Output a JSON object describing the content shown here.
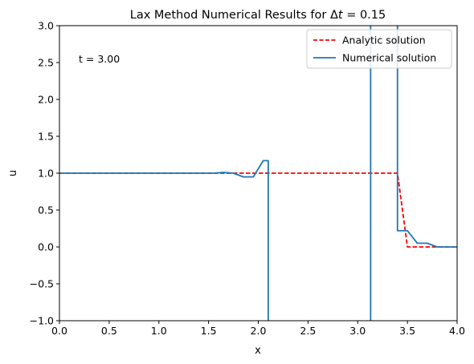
{
  "chart_data": {
    "type": "line",
    "title_prefix": "Lax Method Numerical Results for ",
    "title_delta": "Δ",
    "title_t": "t",
    "title_suffix": " = 0.15",
    "xlabel": "x",
    "ylabel": "u",
    "xlim": [
      0.0,
      4.0
    ],
    "ylim": [
      -1.0,
      3.0
    ],
    "xticks": [
      0.0,
      0.5,
      1.0,
      1.5,
      2.0,
      2.5,
      3.0,
      3.5,
      4.0
    ],
    "xtick_labels": [
      "0.0",
      "0.5",
      "1.0",
      "1.5",
      "2.0",
      "2.5",
      "3.0",
      "3.5",
      "4.0"
    ],
    "yticks": [
      -1.0,
      -0.5,
      0.0,
      0.5,
      1.0,
      1.5,
      2.0,
      2.5,
      3.0
    ],
    "ytick_labels": [
      "−1.0",
      "−0.5",
      "0.0",
      "0.5",
      "1.0",
      "1.5",
      "2.0",
      "2.5",
      "3.0"
    ],
    "grid": false,
    "legend_position": "top-right",
    "annotation": "t = 3.00",
    "series": [
      {
        "name": "Analytic solution",
        "color": "#ff0000",
        "style": "dashed",
        "x": [
          0.0,
          3.4,
          3.5,
          4.0
        ],
        "y": [
          1.0,
          1.0,
          0.0,
          0.0
        ]
      },
      {
        "name": "Numerical solution",
        "color": "#1f77b4",
        "style": "solid",
        "step": true,
        "x": [
          0.0,
          1.55,
          1.65,
          1.75,
          1.85,
          1.95,
          2.05,
          2.1,
          2.1,
          3.13,
          3.13,
          3.4,
          3.4,
          3.5,
          3.6,
          3.7,
          3.8,
          4.0
        ],
        "y": [
          1.0,
          1.0,
          1.01,
          1.0,
          0.95,
          0.95,
          1.17,
          1.17,
          -1.05,
          -1.05,
          3.05,
          3.05,
          0.22,
          0.22,
          0.05,
          0.05,
          0.0,
          0.0
        ]
      }
    ]
  }
}
